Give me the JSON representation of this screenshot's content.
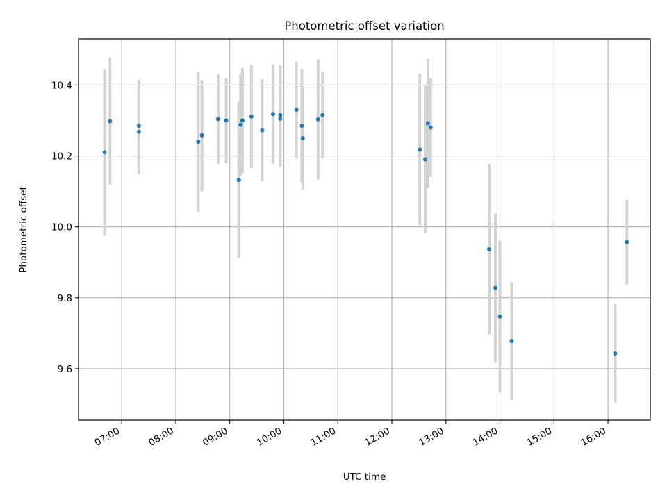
{
  "chart_data": {
    "type": "scatter",
    "title": "Photometric offset variation",
    "xlabel": "UTC time",
    "ylabel": "Photometric offset",
    "grid": true,
    "x_tick_labels": [
      "07:00",
      "08:00",
      "09:00",
      "10:00",
      "11:00",
      "12:00",
      "13:00",
      "14:00",
      "15:00",
      "16:00"
    ],
    "y_tick_labels": [
      "9.6",
      "9.8",
      "10.0",
      "10.2",
      "10.4"
    ],
    "ylim": [
      9.455,
      10.53
    ],
    "xlim": [
      "06:12",
      "16:47"
    ],
    "colors": {
      "point": "#1f77b4",
      "errorbar": "#d3d3d3",
      "grid": "#b0b0b0"
    },
    "points": [
      {
        "x": "06:41",
        "y": 10.21,
        "ylow": 9.975,
        "yhigh": 10.445
      },
      {
        "x": "06:47",
        "y": 10.298,
        "ylow": 10.118,
        "yhigh": 10.478
      },
      {
        "x": "07:19",
        "y": 10.285,
        "ylow": 10.155,
        "yhigh": 10.415
      },
      {
        "x": "07:19",
        "y": 10.268,
        "ylow": 10.148,
        "yhigh": 10.388
      },
      {
        "x": "08:25",
        "y": 10.24,
        "ylow": 10.043,
        "yhigh": 10.437
      },
      {
        "x": "08:29",
        "y": 10.258,
        "ylow": 10.1,
        "yhigh": 10.414
      },
      {
        "x": "08:47",
        "y": 10.304,
        "ylow": 10.178,
        "yhigh": 10.43
      },
      {
        "x": "08:56",
        "y": 10.3,
        "ylow": 10.18,
        "yhigh": 10.42
      },
      {
        "x": "09:10",
        "y": 10.132,
        "ylow": 9.913,
        "yhigh": 10.353
      },
      {
        "x": "09:12",
        "y": 10.288,
        "ylow": 10.143,
        "yhigh": 10.433
      },
      {
        "x": "09:14",
        "y": 10.3,
        "ylow": 10.152,
        "yhigh": 10.448
      },
      {
        "x": "09:24",
        "y": 10.311,
        "ylow": 10.165,
        "yhigh": 10.457
      },
      {
        "x": "09:36",
        "y": 10.272,
        "ylow": 10.128,
        "yhigh": 10.416
      },
      {
        "x": "09:48",
        "y": 10.318,
        "ylow": 10.178,
        "yhigh": 10.458
      },
      {
        "x": "09:56",
        "y": 10.315,
        "ylow": 10.17,
        "yhigh": 10.455
      },
      {
        "x": "09:56",
        "y": 10.305,
        "ylow": 10.19,
        "yhigh": 10.42
      },
      {
        "x": "10:14",
        "y": 10.33,
        "ylow": 10.195,
        "yhigh": 10.466
      },
      {
        "x": "10:20",
        "y": 10.285,
        "ylow": 10.125,
        "yhigh": 10.445
      },
      {
        "x": "10:21",
        "y": 10.25,
        "ylow": 10.105,
        "yhigh": 10.395
      },
      {
        "x": "10:38",
        "y": 10.303,
        "ylow": 10.133,
        "yhigh": 10.473
      },
      {
        "x": "10:43",
        "y": 10.315,
        "ylow": 10.193,
        "yhigh": 10.437
      },
      {
        "x": "12:31",
        "y": 10.218,
        "ylow": 10.005,
        "yhigh": 10.431
      },
      {
        "x": "12:37",
        "y": 10.19,
        "ylow": 9.982,
        "yhigh": 10.398
      },
      {
        "x": "12:40",
        "y": 10.292,
        "ylow": 10.11,
        "yhigh": 10.474
      },
      {
        "x": "12:43",
        "y": 10.28,
        "ylow": 10.14,
        "yhigh": 10.42
      },
      {
        "x": "13:48",
        "y": 9.937,
        "ylow": 9.697,
        "yhigh": 10.177
      },
      {
        "x": "13:55",
        "y": 9.828,
        "ylow": 9.618,
        "yhigh": 10.038
      },
      {
        "x": "14:00",
        "y": 9.747,
        "ylow": 9.533,
        "yhigh": 9.961
      },
      {
        "x": "14:13",
        "y": 9.678,
        "ylow": 9.511,
        "yhigh": 9.845
      },
      {
        "x": "16:08",
        "y": 9.643,
        "ylow": 9.505,
        "yhigh": 9.781
      },
      {
        "x": "16:21",
        "y": 9.957,
        "ylow": 9.837,
        "yhigh": 10.077
      }
    ]
  }
}
